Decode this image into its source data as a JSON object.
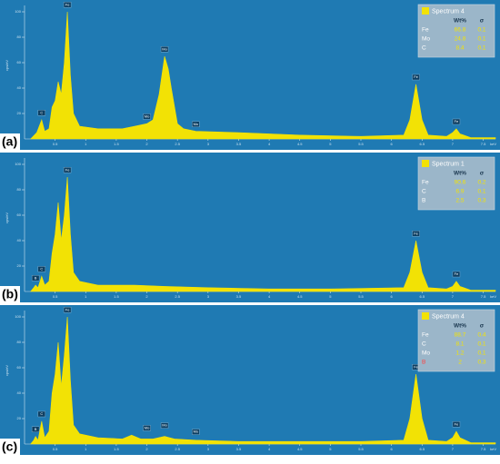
{
  "chart_data": [
    {
      "type": "area",
      "panel_label": "(a)",
      "color": "#f2e205",
      "x_unit": "keV",
      "y_label": "cps/eV",
      "xlim": [
        0,
        7.7
      ],
      "ylim": [
        0,
        105
      ],
      "xticks": [
        0.5,
        1,
        1.5,
        2,
        2.5,
        3,
        3.5,
        4,
        4.5,
        5,
        5.5,
        6,
        6.5,
        7,
        7.5
      ],
      "yticks": [
        20,
        40,
        60,
        80,
        100
      ],
      "x": [
        0.1,
        0.2,
        0.28,
        0.33,
        0.4,
        0.45,
        0.5,
        0.55,
        0.6,
        0.65,
        0.7,
        0.75,
        0.8,
        0.9,
        1.2,
        1.6,
        1.8,
        2.0,
        2.1,
        2.2,
        2.29,
        2.35,
        2.4,
        2.5,
        2.6,
        2.8,
        3.5,
        4.5,
        5.5,
        6.2,
        6.3,
        6.4,
        6.5,
        6.6,
        6.9,
        7.0,
        7.06,
        7.12,
        7.3,
        7.7
      ],
      "values": [
        0,
        5,
        15,
        6,
        8,
        25,
        30,
        45,
        35,
        60,
        100,
        50,
        20,
        10,
        8,
        8,
        10,
        12,
        15,
        35,
        65,
        55,
        40,
        12,
        8,
        6,
        5,
        3,
        2,
        3,
        15,
        43,
        15,
        3,
        2,
        5,
        8,
        4,
        1,
        1
      ],
      "peak_labels": [
        {
          "text": "C",
          "x": 0.28,
          "y": 17
        },
        {
          "text": "Fe",
          "x": 0.7,
          "y": 102
        },
        {
          "text": "Mo",
          "x": 2.0,
          "y": 14
        },
        {
          "text": "Mo",
          "x": 2.29,
          "y": 67
        },
        {
          "text": "Mo",
          "x": 2.8,
          "y": 8
        },
        {
          "text": "Fe",
          "x": 6.4,
          "y": 45
        },
        {
          "text": "Fe",
          "x": 7.06,
          "y": 10
        }
      ],
      "legend": {
        "title": "Spectrum 4",
        "columns": [
          "Wt%",
          "σ"
        ],
        "rows": [
          [
            "Fe",
            66.8,
            0.1
          ],
          [
            "Mo",
            24.8,
            0.1
          ],
          [
            "C",
            8.4,
            0.1
          ]
        ],
        "label_colors": [
          "#ffffff",
          "#ffffff",
          "#ffffff"
        ]
      }
    },
    {
      "type": "area",
      "panel_label": "(b)",
      "color": "#f2e205",
      "x_unit": "keV",
      "y_label": "cps/eV",
      "xlim": [
        0,
        7.7
      ],
      "ylim": [
        0,
        105
      ],
      "xticks": [
        0.5,
        1,
        1.5,
        2,
        2.5,
        3,
        3.5,
        4,
        4.5,
        5,
        5.5,
        6,
        6.5,
        7,
        7.5
      ],
      "yticks": [
        20,
        40,
        60,
        80,
        100
      ],
      "x": [
        0.1,
        0.15,
        0.18,
        0.22,
        0.28,
        0.33,
        0.4,
        0.45,
        0.5,
        0.55,
        0.6,
        0.65,
        0.7,
        0.75,
        0.8,
        0.9,
        1.2,
        1.8,
        2.3,
        3.0,
        4.0,
        5.0,
        6.2,
        6.3,
        6.4,
        6.5,
        6.6,
        6.9,
        7.0,
        7.06,
        7.12,
        7.3,
        7.7
      ],
      "values": [
        0,
        3,
        5,
        3,
        12,
        5,
        8,
        30,
        45,
        70,
        40,
        60,
        90,
        45,
        15,
        8,
        5,
        5,
        4,
        3,
        2,
        2,
        3,
        15,
        40,
        15,
        3,
        2,
        4,
        8,
        4,
        1,
        1
      ],
      "peak_labels": [
        {
          "text": "B",
          "x": 0.18,
          "y": 7
        },
        {
          "text": "C",
          "x": 0.28,
          "y": 14
        },
        {
          "text": "Fe",
          "x": 0.7,
          "y": 92
        },
        {
          "text": "Fe",
          "x": 6.4,
          "y": 42
        },
        {
          "text": "Fe",
          "x": 7.06,
          "y": 10
        }
      ],
      "legend": {
        "title": "Spectrum 1",
        "columns": [
          "Wt%",
          "σ"
        ],
        "rows": [
          [
            "Fe",
            90.6,
            0.2
          ],
          [
            "C",
            6.9,
            0.1
          ],
          [
            "B",
            2.5,
            0.3
          ]
        ],
        "label_colors": [
          "#ffffff",
          "#ffffff",
          "#ffffff"
        ]
      }
    },
    {
      "type": "area",
      "panel_label": "(c)",
      "color": "#f2e205",
      "x_unit": "keV",
      "y_label": "cps/eV",
      "xlim": [
        0,
        7.7
      ],
      "ylim": [
        0,
        105
      ],
      "xticks": [
        0.5,
        1,
        1.5,
        2,
        2.5,
        3,
        3.5,
        4,
        4.5,
        5,
        5.5,
        6,
        6.5,
        7,
        7.5
      ],
      "yticks": [
        20,
        40,
        60,
        80,
        100
      ],
      "x": [
        0.1,
        0.15,
        0.18,
        0.22,
        0.28,
        0.33,
        0.4,
        0.45,
        0.5,
        0.55,
        0.6,
        0.65,
        0.7,
        0.75,
        0.8,
        0.9,
        1.2,
        1.6,
        1.75,
        1.9,
        2.1,
        2.29,
        2.45,
        2.8,
        3.5,
        4.5,
        5.5,
        6.2,
        6.3,
        6.4,
        6.5,
        6.6,
        6.9,
        7.0,
        7.06,
        7.12,
        7.3,
        7.7
      ],
      "values": [
        0,
        3,
        6,
        3,
        18,
        5,
        10,
        40,
        55,
        80,
        45,
        70,
        100,
        50,
        15,
        8,
        5,
        4,
        7,
        4,
        4,
        6,
        4,
        3,
        2,
        2,
        2,
        3,
        20,
        55,
        20,
        3,
        2,
        5,
        10,
        5,
        1,
        1
      ],
      "peak_labels": [
        {
          "text": "B",
          "x": 0.18,
          "y": 8
        },
        {
          "text": "C",
          "x": 0.28,
          "y": 20
        },
        {
          "text": "Fe",
          "x": 0.7,
          "y": 102
        },
        {
          "text": "Mo",
          "x": 2.0,
          "y": 9
        },
        {
          "text": "Mo",
          "x": 2.29,
          "y": 11
        },
        {
          "text": "Mo",
          "x": 2.8,
          "y": 6
        },
        {
          "text": "Fe",
          "x": 6.4,
          "y": 57
        },
        {
          "text": "Fe",
          "x": 7.06,
          "y": 12
        }
      ],
      "legend": {
        "title": "Spectrum 4",
        "columns": [
          "Wt%",
          "σ"
        ],
        "rows": [
          [
            "Fe",
            88.7,
            0.4
          ],
          [
            "C",
            8.1,
            0.1
          ],
          [
            "Mo",
            1.2,
            0.1
          ],
          [
            "B",
            2.0,
            0.3
          ]
        ],
        "label_colors": [
          "#ffffff",
          "#ffffff",
          "#ffffff",
          "#ff4040"
        ]
      }
    }
  ]
}
